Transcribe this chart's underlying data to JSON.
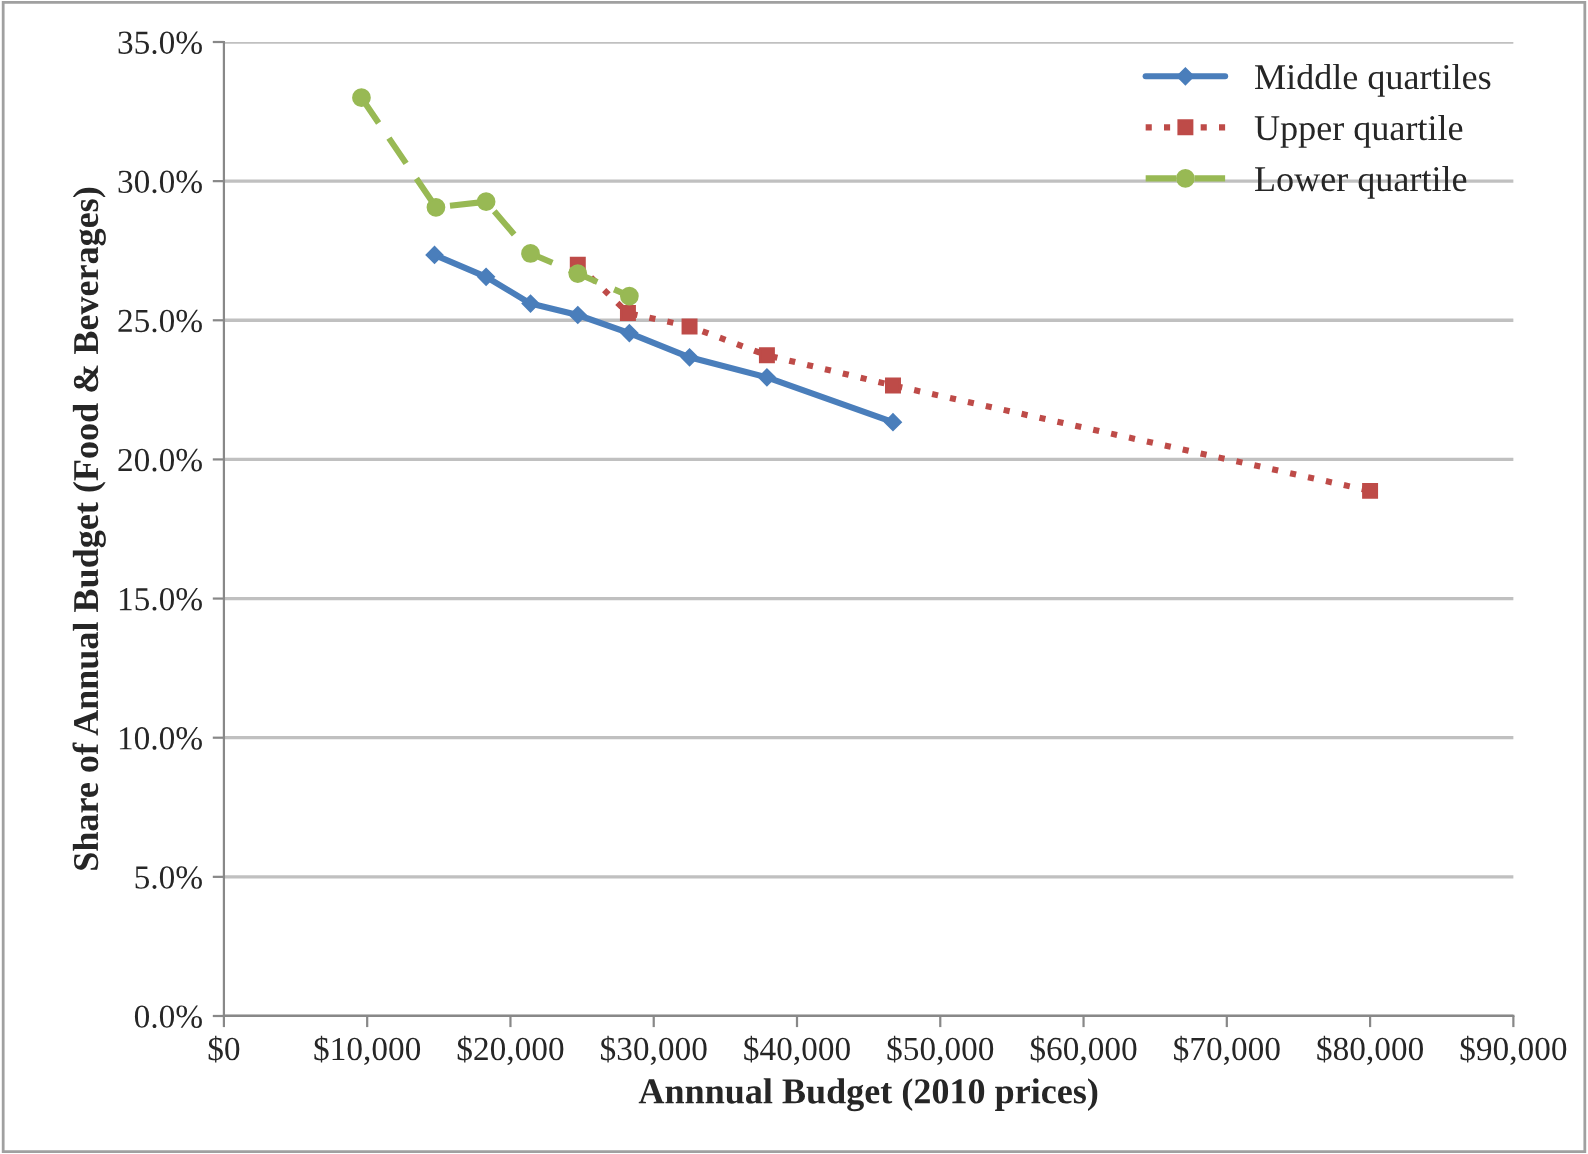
{
  "chart_data": {
    "type": "line",
    "xlabel": "Annnual Budget (2010 prices)",
    "ylabel": "Share of Annual Budget (Food & Beverages)",
    "series": [
      {
        "name": "Middle quartiles",
        "color": "#4a7ebb",
        "marker": "diamond",
        "line_style": "solid",
        "x": [
          14700,
          18300,
          21400,
          24700,
          28300,
          32500,
          37900,
          46700
        ],
        "values": [
          27.35,
          26.56,
          25.6,
          25.19,
          24.54,
          23.67,
          22.95,
          21.34
        ]
      },
      {
        "name": "Upper quartile",
        "color": "#be4b48",
        "marker": "square",
        "line_style": "dotted",
        "x": [
          24700,
          28200,
          32500,
          37900,
          46700,
          80000
        ],
        "values": [
          27.0,
          25.26,
          24.78,
          23.74,
          22.66,
          18.87
        ]
      },
      {
        "name": "Lower quartile",
        "color": "#98b954",
        "marker": "circle",
        "line_style": "dashed",
        "x": [
          9600,
          14800,
          18300,
          21400,
          24700,
          28300
        ],
        "values": [
          33.0,
          29.06,
          29.26,
          27.4,
          26.68,
          25.87
        ]
      }
    ],
    "xlim": [
      0,
      90000
    ],
    "xticks": [
      {
        "value": 0,
        "label": "$0"
      },
      {
        "value": 10000,
        "label": "$10,000"
      },
      {
        "value": 20000,
        "label": "$20,000"
      },
      {
        "value": 30000,
        "label": "$30,000"
      },
      {
        "value": 40000,
        "label": "$40,000"
      },
      {
        "value": 50000,
        "label": "$50,000"
      },
      {
        "value": 60000,
        "label": "$60,000"
      },
      {
        "value": 70000,
        "label": "$70,000"
      },
      {
        "value": 80000,
        "label": "$80,000"
      },
      {
        "value": 90000,
        "label": "$90,000"
      }
    ],
    "ylim": [
      0,
      35
    ],
    "yticks": [
      {
        "value": 0,
        "label": "0.0%"
      },
      {
        "value": 5,
        "label": "5.0%"
      },
      {
        "value": 10,
        "label": "10.0%"
      },
      {
        "value": 15,
        "label": "15.0%"
      },
      {
        "value": 20,
        "label": "20.0%"
      },
      {
        "value": 25,
        "label": "25.0%"
      },
      {
        "value": 30,
        "label": "30.0%"
      },
      {
        "value": 35,
        "label": "35.0%"
      }
    ],
    "grid": "y",
    "legend": "top right"
  }
}
